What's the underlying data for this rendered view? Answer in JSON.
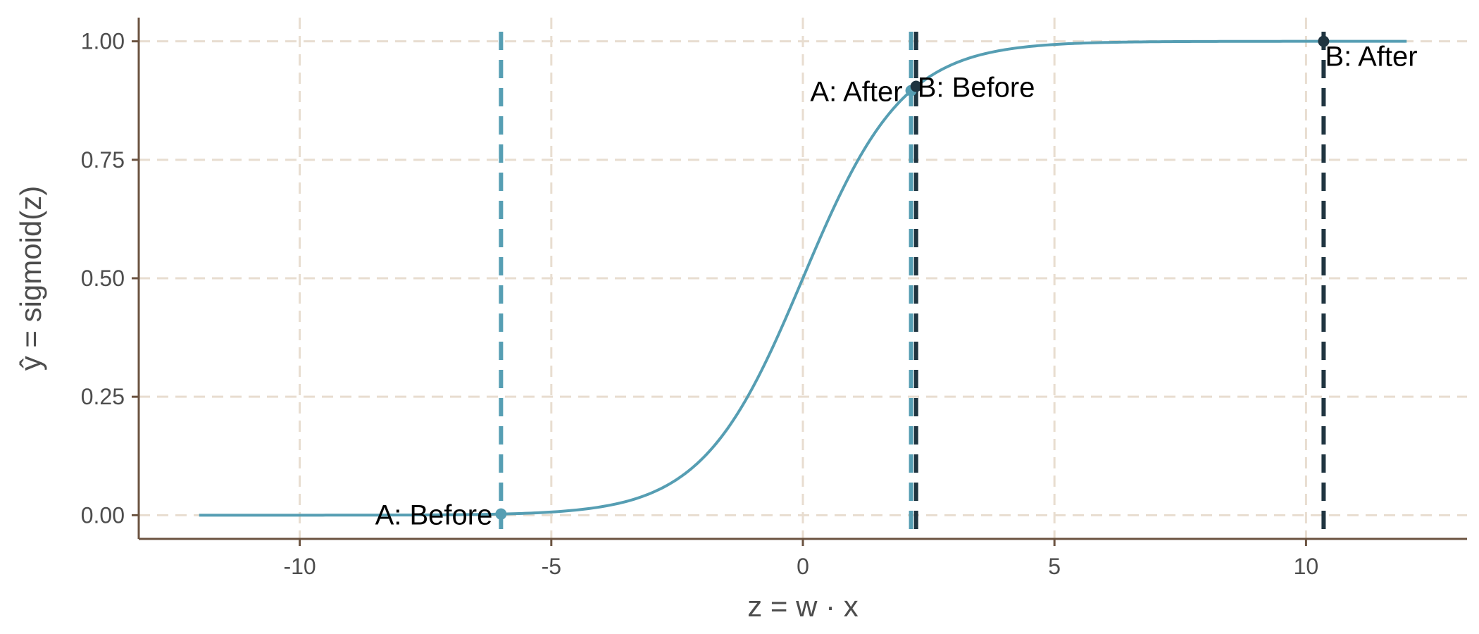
{
  "chart_data": {
    "type": "line",
    "title": "",
    "xlabel": "z = w · x",
    "ylabel": "ŷ = sigmoid(z)",
    "xlim": [
      -13.2,
      13.2
    ],
    "ylim": [
      -0.05,
      1.05
    ],
    "x_ticks": [
      -10,
      -5,
      0,
      5,
      10
    ],
    "x_tick_labels": [
      "-10",
      "-5",
      "0",
      "5",
      "10"
    ],
    "y_ticks": [
      0,
      0.25,
      0.5,
      0.75,
      1.0
    ],
    "y_tick_labels": [
      "0.00",
      "0.25",
      "0.50",
      "0.75",
      "1.00"
    ],
    "grid": true,
    "series": [
      {
        "function": "sigmoid",
        "x_range": [
          -12,
          12
        ],
        "color": "#569eb3"
      }
    ],
    "reference_lines": [
      {
        "x": -6.0,
        "color": "#569eb3"
      },
      {
        "x": 2.15,
        "color": "#569eb3"
      },
      {
        "x": 2.25,
        "color": "#1f3440"
      },
      {
        "x": 10.35,
        "color": "#1f3440"
      }
    ],
    "points": [
      {
        "label": "A: Before",
        "x": -6.0,
        "y": 0.0025,
        "color": "#569eb3",
        "label_anchor": "end"
      },
      {
        "label": "A: After",
        "x": 2.15,
        "y": 0.896,
        "color": "#569eb3",
        "label_anchor": "end"
      },
      {
        "label": "B: Before",
        "x": 2.25,
        "y": 0.905,
        "color": "#1f3440",
        "label_anchor": "start"
      },
      {
        "label": "B: After",
        "x": 10.35,
        "y": 1.0,
        "color": "#1f3440",
        "label_anchor": "start"
      }
    ],
    "colors": {
      "axis": "#6b5340",
      "grid": "#e8ddd0"
    }
  }
}
